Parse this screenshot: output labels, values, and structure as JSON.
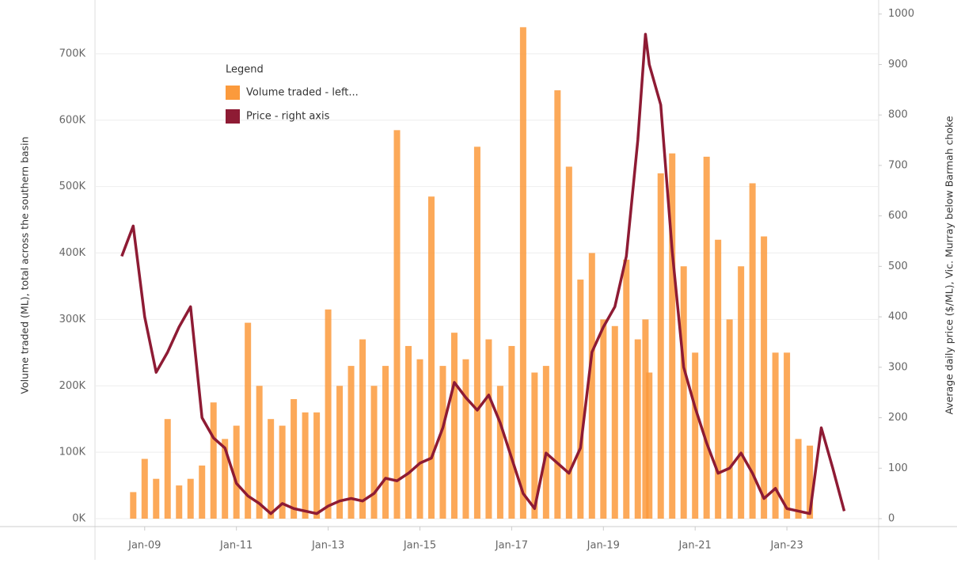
{
  "chart_data": {
    "type": "bar-line",
    "x": [
      "2008-07",
      "2008-10",
      "2009-01",
      "2009-04",
      "2009-07",
      "2009-10",
      "2010-01",
      "2010-04",
      "2010-07",
      "2010-10",
      "2011-01",
      "2011-04",
      "2011-07",
      "2011-10",
      "2012-01",
      "2012-04",
      "2012-07",
      "2012-10",
      "2013-01",
      "2013-04",
      "2013-07",
      "2013-10",
      "2014-01",
      "2014-04",
      "2014-07",
      "2014-10",
      "2015-01",
      "2015-04",
      "2015-07",
      "2015-10",
      "2016-01",
      "2016-04",
      "2016-07",
      "2016-10",
      "2017-01",
      "2017-04",
      "2017-07",
      "2017-10",
      "2018-01",
      "2018-04",
      "2018-07",
      "2018-10",
      "2019-01",
      "2019-04",
      "2019-07",
      "2019-10",
      "2019-12",
      "2020-01",
      "2020-04",
      "2020-07",
      "2020-10",
      "2021-01",
      "2021-04",
      "2021-07",
      "2021-10",
      "2022-01",
      "2022-04",
      "2022-07",
      "2022-10",
      "2023-01",
      "2023-04",
      "2023-07",
      "2023-10",
      "2024-01",
      "2024-04"
    ],
    "series": [
      {
        "name": "Volume traded - left...",
        "color": "#fb9a3c",
        "kind": "bar",
        "values": [
          0,
          40000,
          90000,
          60000,
          150000,
          50000,
          60000,
          80000,
          175000,
          120000,
          140000,
          295000,
          200000,
          150000,
          140000,
          180000,
          160000,
          160000,
          315000,
          200000,
          230000,
          270000,
          200000,
          230000,
          585000,
          260000,
          240000,
          485000,
          230000,
          280000,
          240000,
          560000,
          270000,
          200000,
          260000,
          740000,
          220000,
          230000,
          645000,
          530000,
          360000,
          400000,
          300000,
          290000,
          390000,
          270000,
          300000,
          220000,
          520000,
          550000,
          380000,
          250000,
          545000,
          420000,
          300000,
          380000,
          505000,
          425000,
          250000,
          250000,
          120000,
          110000,
          null,
          null,
          null
        ]
      },
      {
        "name": "Price - right axis",
        "color": "#8e1b34",
        "kind": "line",
        "axis": "y2",
        "values": [
          520,
          580,
          400,
          290,
          330,
          380,
          420,
          200,
          160,
          140,
          70,
          45,
          30,
          10,
          30,
          20,
          15,
          10,
          25,
          35,
          40,
          35,
          50,
          80,
          75,
          90,
          110,
          120,
          180,
          270,
          240,
          215,
          245,
          190,
          120,
          50,
          20,
          130,
          110,
          90,
          140,
          330,
          380,
          420,
          520,
          750,
          960,
          900,
          820,
          530,
          300,
          220,
          150,
          90,
          100,
          130,
          90,
          40,
          60,
          20,
          15,
          10,
          180,
          100,
          15
        ]
      }
    ],
    "ylabel": "Volume traded (ML), total across the southern basin",
    "y2label": "Average daily price ($/ML), Vic. Murray below Barmah choke",
    "legend_title": "Legend",
    "xlim": [
      "2007-12",
      "2025-01"
    ],
    "xticks": [
      {
        "value": "2009-01",
        "label": "Jan-09"
      },
      {
        "value": "2011-01",
        "label": "Jan-11"
      },
      {
        "value": "2013-01",
        "label": "Jan-13"
      },
      {
        "value": "2015-01",
        "label": "Jan-15"
      },
      {
        "value": "2017-01",
        "label": "Jan-17"
      },
      {
        "value": "2019-01",
        "label": "Jan-19"
      },
      {
        "value": "2021-01",
        "label": "Jan-21"
      },
      {
        "value": "2023-01",
        "label": "Jan-23"
      }
    ],
    "ylim": [
      0,
      775000
    ],
    "yticks": [
      {
        "value": 0,
        "label": "0K"
      },
      {
        "value": 100000,
        "label": "100K"
      },
      {
        "value": 200000,
        "label": "200K"
      },
      {
        "value": 300000,
        "label": "300K"
      },
      {
        "value": 400000,
        "label": "400K"
      },
      {
        "value": 500000,
        "label": "500K"
      },
      {
        "value": 600000,
        "label": "600K"
      },
      {
        "value": 700000,
        "label": "700K"
      }
    ],
    "y2lim": [
      0,
      1020
    ],
    "y2ticks": [
      0,
      100,
      200,
      300,
      400,
      500,
      600,
      700,
      800,
      900,
      1000
    ],
    "grid": true
  }
}
